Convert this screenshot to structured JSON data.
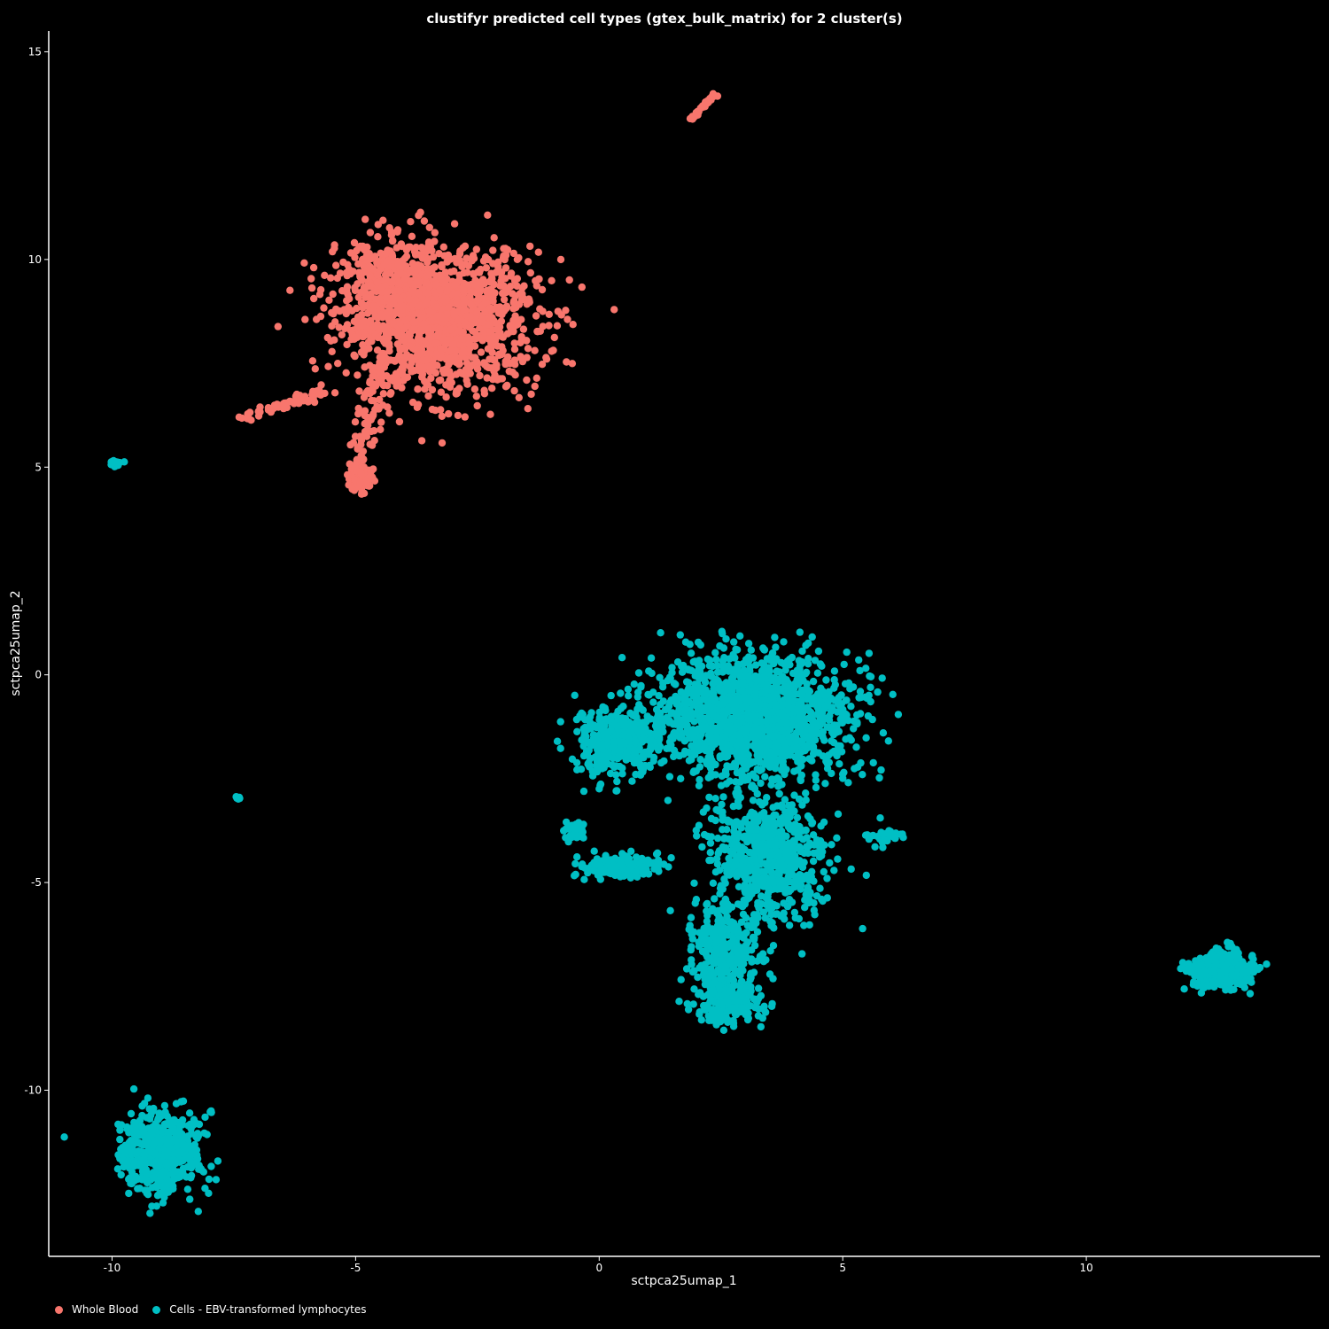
{
  "chart_data": {
    "type": "scatter",
    "title": "clustifyr predicted cell types (gtex_bulk_matrix) for 2 cluster(s)",
    "xlabel": "sctpca25umap_1",
    "ylabel": "sctpca25umap_2",
    "xlim": [
      -11.3,
      14.8
    ],
    "ylim": [
      -14.0,
      15.5
    ],
    "xticks": [
      -10,
      -5,
      0,
      5,
      10
    ],
    "xtick_labels": [
      "-10",
      "-5",
      "0",
      "5",
      "10"
    ],
    "yticks": [
      -10,
      -5,
      0,
      5,
      10,
      15
    ],
    "ytick_labels": [
      "-10",
      "-5",
      "0",
      "5",
      "10",
      "15"
    ],
    "grid": false,
    "background": "#000000",
    "legend_position": "bottom-left",
    "series": [
      {
        "name": "Whole Blood",
        "color": "#F8766D",
        "clusters": [
          {
            "shape": "blob",
            "center": [
              -3.3,
              8.5
            ],
            "spread": [
              1.35,
              1.15
            ],
            "n": 1300
          },
          {
            "shape": "blob",
            "center": [
              -4.3,
              9.4
            ],
            "spread": [
              0.7,
              0.7
            ],
            "n": 280
          },
          {
            "shape": "blob",
            "center": [
              -4.9,
              4.8
            ],
            "spread": [
              0.18,
              0.3
            ],
            "n": 80
          },
          {
            "shape": "line",
            "from": [
              -7.3,
              6.2
            ],
            "to": [
              -5.7,
              6.8
            ],
            "width": 0.12,
            "n": 70
          },
          {
            "shape": "line",
            "from": [
              -4.9,
              5.3
            ],
            "to": [
              -4.5,
              7.5
            ],
            "width": 0.25,
            "n": 70
          },
          {
            "shape": "line",
            "from": [
              1.9,
              13.4
            ],
            "to": [
              2.4,
              14.0
            ],
            "width": 0.05,
            "n": 35
          }
        ]
      },
      {
        "name": "Cells - EBV-transformed lymphocytes",
        "color": "#00BFC4",
        "clusters": [
          {
            "shape": "blob",
            "center": [
              3.2,
              -1.0
            ],
            "spread": [
              1.25,
              0.95
            ],
            "n": 1600
          },
          {
            "shape": "blob",
            "center": [
              0.4,
              -1.6
            ],
            "spread": [
              0.6,
              0.6
            ],
            "n": 380
          },
          {
            "shape": "blob",
            "center": [
              3.5,
              -4.4
            ],
            "spread": [
              0.8,
              1.0
            ],
            "n": 650
          },
          {
            "shape": "blob",
            "center": [
              2.6,
              -6.6
            ],
            "spread": [
              0.45,
              0.7
            ],
            "n": 300
          },
          {
            "shape": "blob",
            "center": [
              2.6,
              -7.9
            ],
            "spread": [
              0.45,
              0.3
            ],
            "n": 220
          },
          {
            "shape": "blob",
            "center": [
              0.4,
              -4.6
            ],
            "spread": [
              0.55,
              0.17
            ],
            "n": 160
          },
          {
            "shape": "blob",
            "center": [
              -0.5,
              -3.7
            ],
            "spread": [
              0.15,
              0.2
            ],
            "n": 40
          },
          {
            "shape": "blob",
            "center": [
              5.8,
              -3.9
            ],
            "spread": [
              0.3,
              0.15
            ],
            "n": 35
          },
          {
            "shape": "blob",
            "center": [
              12.8,
              -7.1
            ],
            "spread": [
              0.45,
              0.3
            ],
            "n": 300
          },
          {
            "shape": "blob",
            "center": [
              -9.0,
              -11.5
            ],
            "spread": [
              0.55,
              0.65
            ],
            "n": 520
          },
          {
            "shape": "blob",
            "center": [
              -9.9,
              5.1
            ],
            "spread": [
              0.08,
              0.05
            ],
            "n": 14
          },
          {
            "shape": "blob",
            "center": [
              -7.4,
              -2.95
            ],
            "spread": [
              0.03,
              0.04
            ],
            "n": 6
          }
        ]
      }
    ]
  }
}
